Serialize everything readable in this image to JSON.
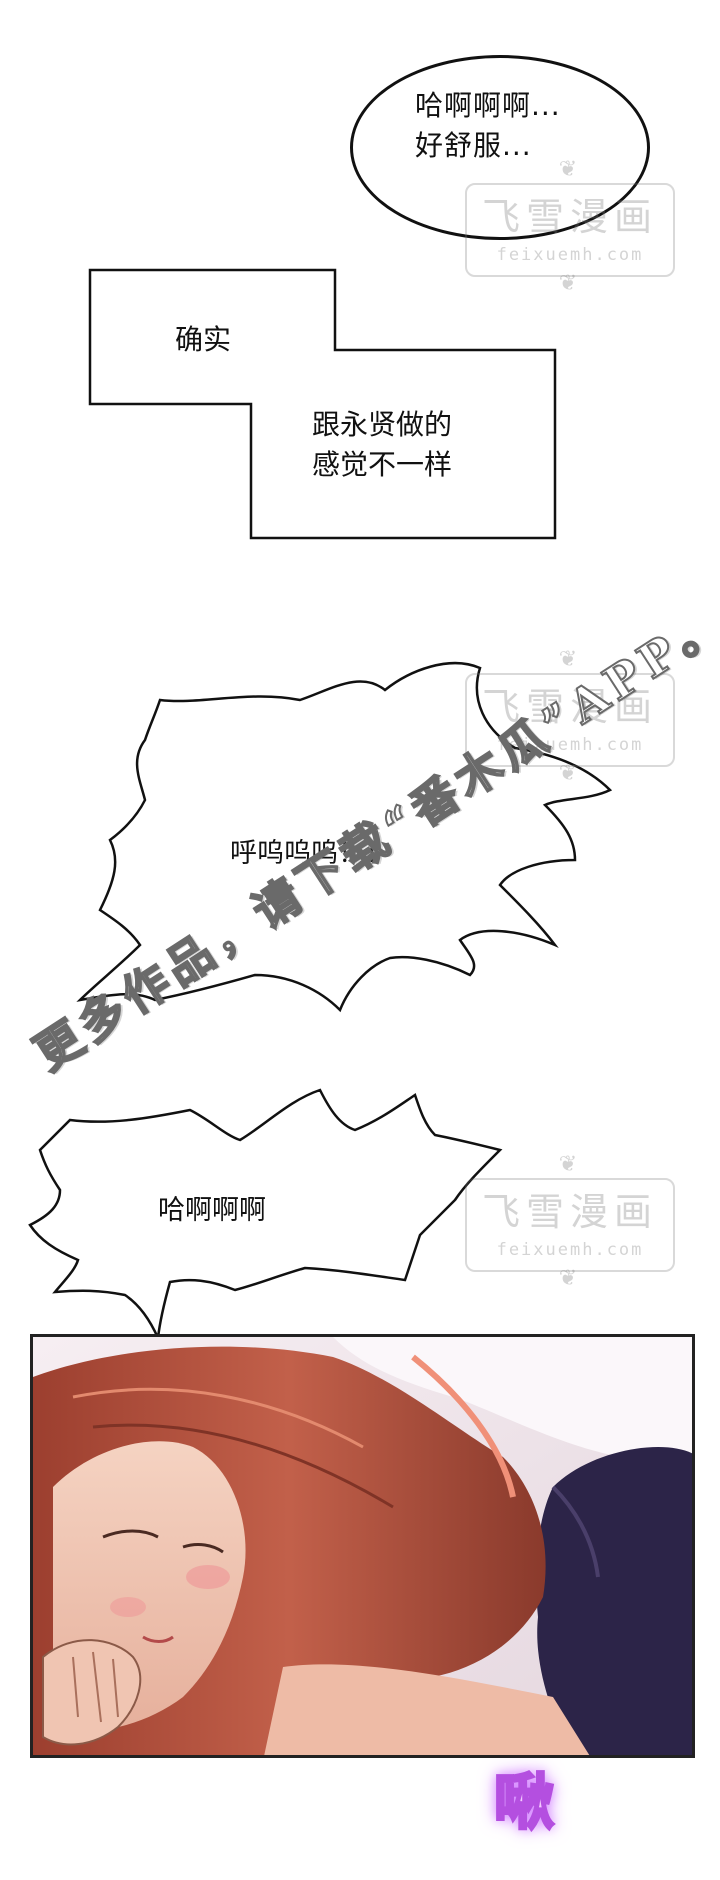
{
  "bubbles": {
    "oval": {
      "text": "哈啊啊啊...\n好舒服..."
    },
    "narration": {
      "line1": "确实",
      "line2": "跟永贤做的\n感觉不一样"
    },
    "shout1": {
      "text": "呼呜呜呜！！"
    },
    "shout2": {
      "text": "哈啊啊啊"
    }
  },
  "watermark": {
    "title": "飞雪漫画",
    "url": "feixuemh.com",
    "ornament": "❦"
  },
  "promo": {
    "text": "更多作品，请下载“番木瓜”APP。"
  },
  "sfx": {
    "text": "啾"
  },
  "colors": {
    "ink": "#111111",
    "watermark": "#8a8a8a",
    "hair": "#b5523e",
    "skin": "#f1c9b6",
    "sfx_glow": "#c96bff"
  }
}
